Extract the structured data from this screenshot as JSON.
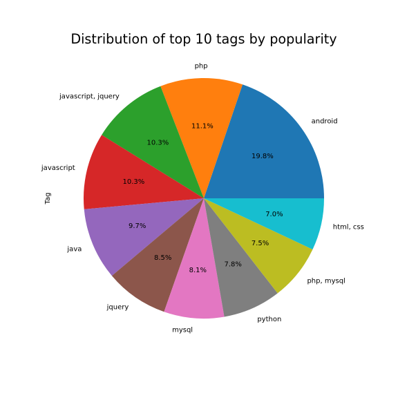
{
  "chart_data": {
    "type": "pie",
    "title": "Distribution of top 10 tags by popularity",
    "ylabel": "Tag",
    "start_angle_deg": 0,
    "direction": "counterclockwise",
    "labels": [
      "android",
      "php",
      "javascript, jquery",
      "javascript",
      "java",
      "jquery",
      "mysql",
      "python",
      "php, mysql",
      "html, css"
    ],
    "values": [
      19.8,
      11.1,
      10.3,
      10.3,
      9.7,
      8.5,
      8.1,
      7.8,
      7.5,
      7.0
    ],
    "pct_labels": [
      "19.8%",
      "11.1%",
      "10.3%",
      "10.3%",
      "9.7%",
      "8.5%",
      "8.1%",
      "7.8%",
      "7.5%",
      "7.0%"
    ],
    "colors": [
      "#1f77b4",
      "#ff7f0e",
      "#2ca02c",
      "#d62728",
      "#9467bd",
      "#8c564b",
      "#e377c2",
      "#7f7f7f",
      "#bcbd22",
      "#17becf"
    ]
  }
}
